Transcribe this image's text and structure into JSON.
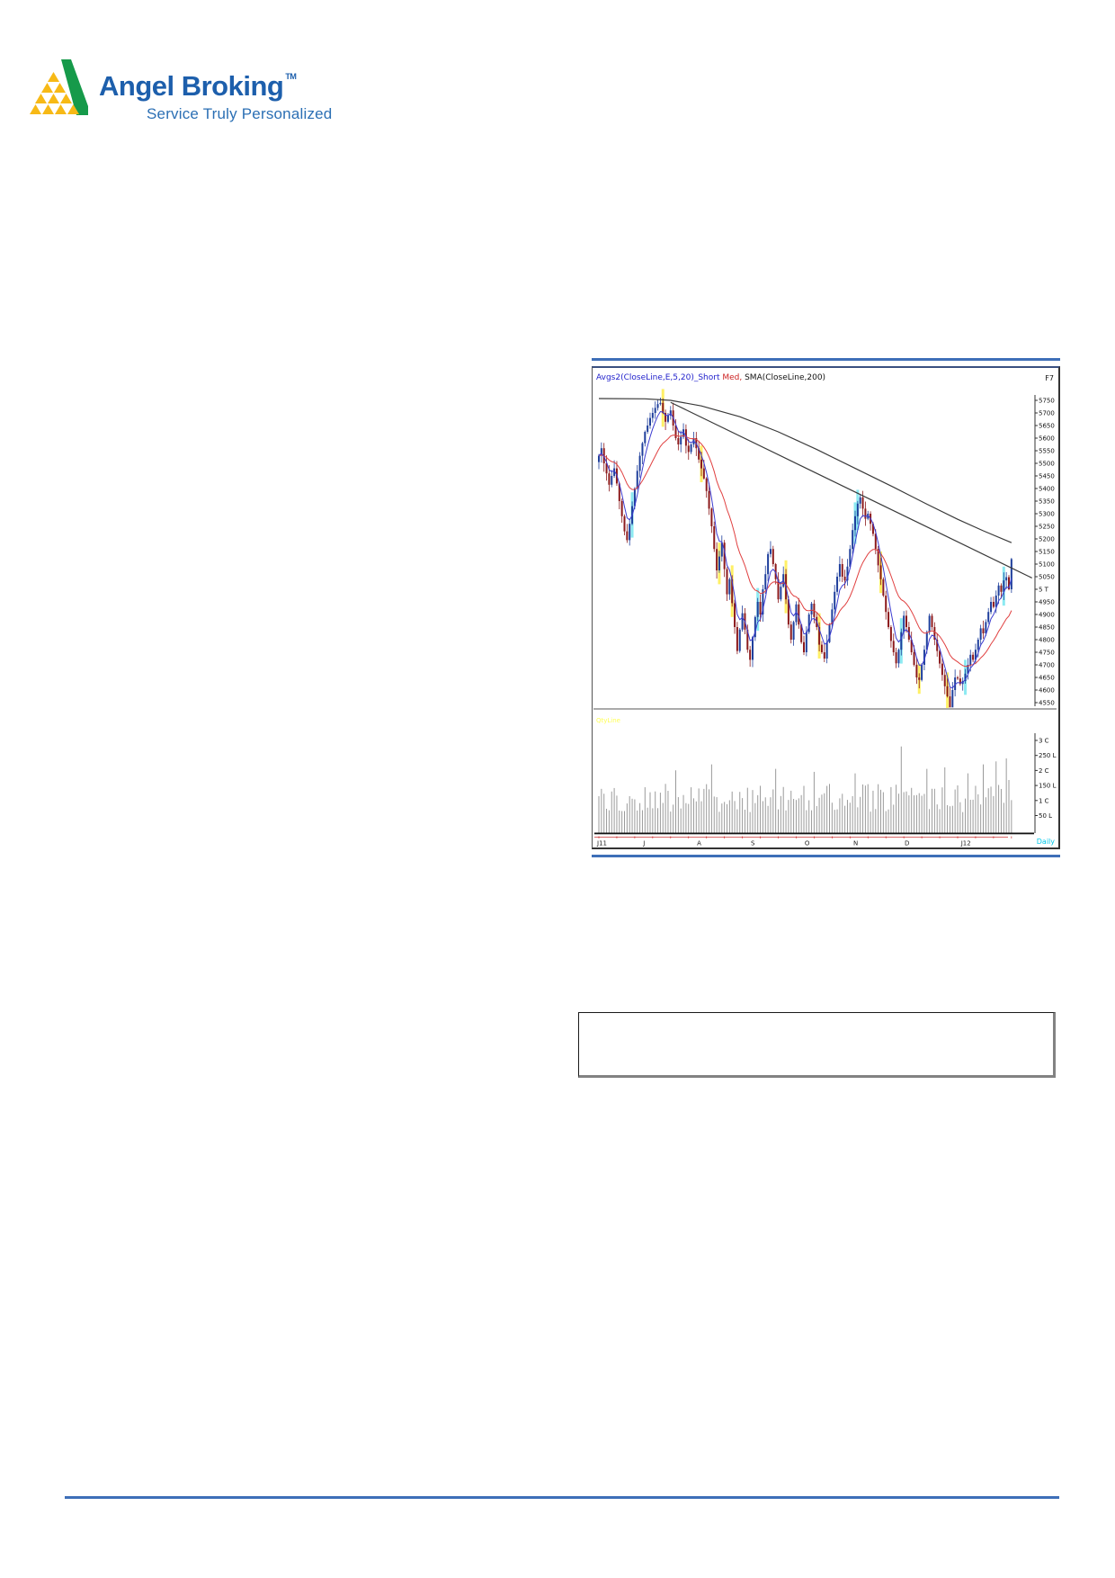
{
  "logo": {
    "brand": "Angel Broking",
    "tm": "TM",
    "tagline": "Service Truly Personalized",
    "brand_color": "#1d5fac",
    "green": "#169a4a",
    "yellow": "#f7b916"
  },
  "chart": {
    "indicator_blue": "Avgs2(CloseLine,E,5,20)_Short",
    "indicator_red": " Med, ",
    "indicator_black": "SMA(CloseLine,200)",
    "fkey_label": "F7",
    "qtyline_label": "QtyLine",
    "daily_label": "Daily",
    "price_ticks": [
      "5750",
      "5700",
      "5650",
      "5600",
      "5550",
      "5500",
      "5450",
      "5400",
      "5350",
      "5300",
      "5250",
      "5200",
      "5150",
      "5100",
      "5050",
      "5 T",
      "4950",
      "4900",
      "4850",
      "4800",
      "4750",
      "4700",
      "4650",
      "4600",
      "4550"
    ],
    "volume_ticks": [
      "3 C",
      "250 L",
      "2 C",
      "150 L",
      "1 C",
      "50 L"
    ],
    "month_labels": [
      "J11",
      "J",
      "A",
      "S",
      "O",
      "N",
      "D",
      "J12"
    ]
  },
  "chart_data": {
    "type": "candlestick",
    "timeframe": "Daily",
    "x_axis": {
      "labels": [
        "J11",
        "J",
        "A",
        "S",
        "O",
        "N",
        "D",
        "J12"
      ],
      "label_days": [
        0,
        18,
        39,
        60,
        81,
        100,
        120,
        142
      ]
    },
    "ylim": [
      4500,
      5800
    ],
    "price_tick_values": [
      5750,
      5700,
      5650,
      5600,
      5550,
      5500,
      5450,
      5400,
      5350,
      5300,
      5250,
      5200,
      5150,
      5100,
      5050,
      5000,
      4950,
      4900,
      4850,
      4800,
      4750,
      4700,
      4650,
      4600,
      4550
    ],
    "volume_tick_lakhs": [
      300,
      250,
      200,
      150,
      100,
      50
    ],
    "closes": [
      5530,
      5560,
      5500,
      5460,
      5415,
      5450,
      5480,
      5420,
      5350,
      5290,
      5230,
      5195,
      5260,
      5330,
      5400,
      5470,
      5530,
      5580,
      5625,
      5650,
      5680,
      5700,
      5720,
      5735,
      5740,
      5700,
      5665,
      5690,
      5710,
      5650,
      5600,
      5575,
      5605,
      5635,
      5570,
      5545,
      5575,
      5600,
      5560,
      5515,
      5480,
      5440,
      5390,
      5320,
      5250,
      5160,
      5075,
      5130,
      5185,
      5080,
      4980,
      5040,
      4945,
      4850,
      4755,
      4840,
      4905,
      4840,
      4760,
      4720,
      4810,
      4890,
      4950,
      4900,
      5000,
      5060,
      5140,
      5160,
      5100,
      5040,
      4960,
      5010,
      5060,
      4960,
      4860,
      4800,
      4870,
      4940,
      4860,
      4790,
      4750,
      4830,
      4900,
      4943,
      4890,
      4850,
      4780,
      4750,
      4725,
      4790,
      4860,
      4920,
      4990,
      5050,
      5100,
      5050,
      5035,
      5090,
      5160,
      5235,
      5290,
      5340,
      5365,
      5320,
      5280,
      5300,
      5260,
      5220,
      5160,
      5095,
      5040,
      4975,
      4910,
      4850,
      4795,
      4750,
      4706,
      4760,
      4830,
      4895,
      4850,
      4800,
      4750,
      4700,
      4650,
      4640,
      4700,
      4760,
      4830,
      4895,
      4850,
      4800,
      4755,
      4705,
      4660,
      4615,
      4575,
      4531,
      4600,
      4650,
      4646,
      4624,
      4636,
      4665,
      4700,
      4740,
      4720,
      4760,
      4800,
      4845,
      4825,
      4870,
      4910,
      4950,
      4930,
      4975,
      5015,
      4990,
      5035,
      5048,
      5000,
      5120
    ],
    "sma200": [
      [
        0,
        5757
      ],
      [
        18,
        5756
      ],
      [
        28,
        5750
      ],
      [
        40,
        5728
      ],
      [
        55,
        5685
      ],
      [
        70,
        5625
      ],
      [
        85,
        5555
      ],
      [
        100,
        5480
      ],
      [
        115,
        5405
      ],
      [
        128,
        5338
      ],
      [
        140,
        5278
      ],
      [
        150,
        5232
      ],
      [
        161,
        5185
      ]
    ],
    "trendline": [
      [
        28,
        5742
      ],
      [
        169,
        5045
      ]
    ],
    "highlights_cyan": [
      13,
      62,
      100,
      101,
      118,
      143,
      158,
      166
    ],
    "highlights_yellow": [
      25,
      40,
      47,
      52,
      73,
      86,
      110,
      125,
      136
    ],
    "volume_spikes": {
      "30": 210,
      "44": 230,
      "69": 215,
      "84": 205,
      "100": 200,
      "118": 290,
      "128": 215,
      "135": 220,
      "144": 200,
      "150": 230,
      "155": 240,
      "159": 250
    },
    "colors": {
      "up": "#1f3f9c",
      "down": "#8c1a1c",
      "ema_fast": "#3c3cd0",
      "ema_slow": "#e04040",
      "sma": "#3a3a3a",
      "volume": "#9a9a9a",
      "highlight_cyan": "#8ceaf2",
      "highlight_yellow": "#fff066",
      "axis": "#333333",
      "red_axis": "#cc3333",
      "rule_blue": "#3e6fb8"
    }
  }
}
